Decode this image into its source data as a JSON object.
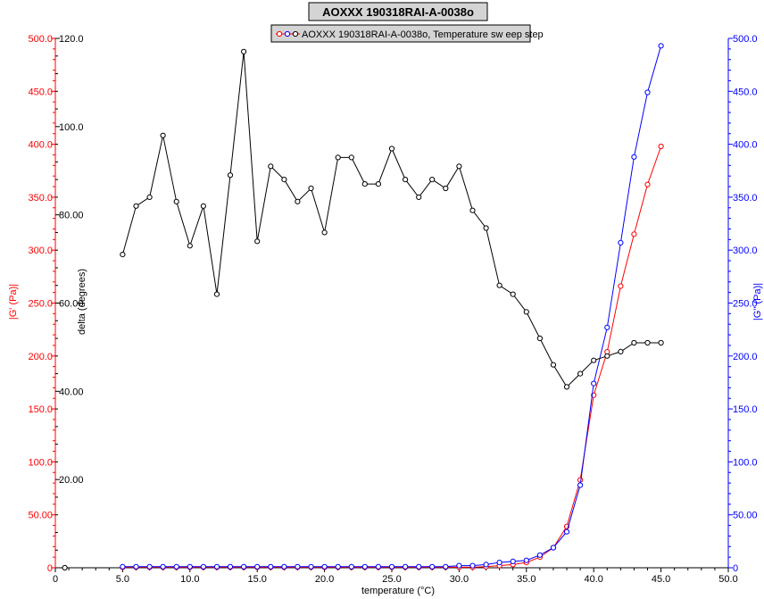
{
  "chart_data": {
    "type": "line",
    "title": "AOXXX 190318RAI-A-0038o",
    "legend_text": "AOXXX 190318RAI-A-0038o, Temperature sw eep step",
    "legend_position": "top-center",
    "grid": false,
    "xlabel": "temperature (°C)",
    "ylabel_left": "|G' (Pa)|",
    "ylabel_delta": "delta (degrees)",
    "ylabel_right": "|G'' (Pa)|",
    "xlim": [
      0,
      50
    ],
    "ylim_left": [
      0,
      500
    ],
    "ylim_delta": [
      0,
      120
    ],
    "ylim_right": [
      0,
      500
    ],
    "x_ticks": [
      "0",
      "5.0",
      "10.0",
      "15.0",
      "20.0",
      "25.0",
      "30.0",
      "35.0",
      "40.0",
      "45.0",
      "50.0"
    ],
    "left_ticks": [
      "0",
      "50.00",
      "100.0",
      "150.0",
      "200.0",
      "250.0",
      "300.0",
      "350.0",
      "400.0",
      "450.0",
      "500.0"
    ],
    "delta_ticks": [
      "20.00",
      "40.00",
      "60.00",
      "80.00",
      "100.0",
      "120.0"
    ],
    "right_ticks": [
      "0",
      "50.00",
      "100.0",
      "150.0",
      "200.0",
      "250.0",
      "300.0",
      "350.0",
      "400.0",
      "450.0",
      "500.0"
    ],
    "colors": {
      "storage": "#ff0000",
      "loss": "#0000ff",
      "delta": "#000000",
      "left_axis": "#ff0000",
      "right_axis": "#0000ff"
    },
    "x": [
      5,
      6,
      7,
      8,
      9,
      10,
      11,
      12,
      13,
      14,
      15,
      16,
      17,
      18,
      19,
      20,
      21,
      22,
      23,
      24,
      25,
      26,
      27,
      28,
      29,
      30,
      31,
      32,
      33,
      34,
      35,
      36,
      37,
      38,
      39,
      40,
      41,
      42,
      43,
      44,
      45
    ],
    "series": [
      {
        "axis": "left",
        "color": "#ff0000",
        "values": [
          0.5,
          0.5,
          0.5,
          0.5,
          0.5,
          0.5,
          0.5,
          0.5,
          0.5,
          0.5,
          0.5,
          0.5,
          0.5,
          0.5,
          0.5,
          0.5,
          0.5,
          0.5,
          0.5,
          0.5,
          0.5,
          0.5,
          0.5,
          0.5,
          0.5,
          0.5,
          0.5,
          1,
          2,
          3,
          5,
          10,
          19,
          39,
          83,
          163,
          204,
          266,
          315,
          362,
          398
        ]
      },
      {
        "axis": "right",
        "color": "#0000ff",
        "values": [
          1,
          1,
          1,
          1,
          1,
          1,
          1,
          1,
          1,
          1,
          1,
          1,
          1,
          1,
          1,
          1,
          1,
          1,
          1,
          1,
          1,
          1,
          1,
          1,
          1,
          2,
          2,
          3,
          5,
          6,
          7,
          12,
          19,
          34,
          78,
          174,
          227,
          307,
          388,
          449,
          493
        ]
      },
      {
        "axis": "delta",
        "color": "#000000",
        "values": [
          71,
          82,
          84,
          98,
          83,
          73,
          82,
          62,
          89,
          117,
          74,
          91,
          88,
          83,
          86,
          76,
          93,
          93,
          87,
          87,
          95,
          88,
          84,
          88,
          86,
          91,
          81,
          77,
          64,
          62,
          58,
          52,
          46,
          41,
          44,
          47,
          48,
          49,
          51,
          51,
          51
        ]
      }
    ],
    "outlier_points": [
      {
        "axis": "delta",
        "x": 0.7,
        "y": 0
      }
    ]
  }
}
